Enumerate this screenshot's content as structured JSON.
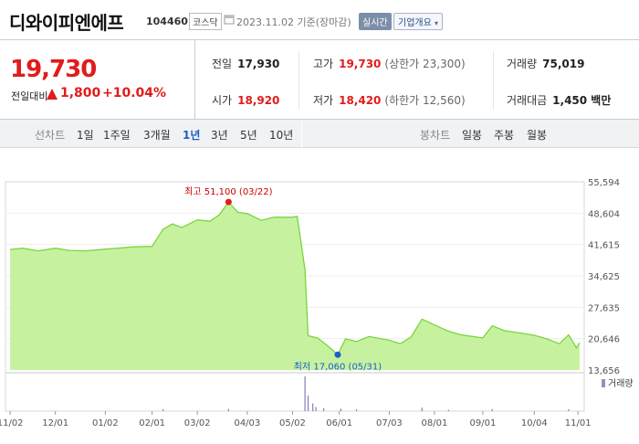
{
  "header": {
    "name": "디와이피엔에프",
    "code": "104460",
    "market": "코스닥",
    "date": "2023.11.02 기준(장마감)",
    "realtime": "실시간",
    "overview": "기업개요"
  },
  "summary": {
    "price": "19,730",
    "change_label": "전일대비",
    "change": "1,800",
    "change_pct": "+10.04%",
    "prev_label": "전일",
    "prev": "17,930",
    "high_label": "고가",
    "high": "19,730",
    "high_note": "(상한가 23,300)",
    "volume_label": "거래량",
    "volume": "75,019",
    "open_label": "시가",
    "open": "18,920",
    "low_label": "저가",
    "low": "18,420",
    "low_note": "(하한가 12,560)",
    "amount_label": "거래대금",
    "amount": "1,450 백만"
  },
  "tabs": {
    "line_title": "선차트",
    "periods": [
      "1일",
      "1주일",
      "3개월",
      "1년",
      "3년",
      "5년",
      "10년"
    ],
    "active": "1년",
    "candle_title": "봉차트",
    "candles": [
      "일봉",
      "주봉",
      "월봉"
    ]
  },
  "chart_data": {
    "type": "area",
    "title": "",
    "xlabel": "",
    "ylabel": "",
    "accent_color": "#7bd43f",
    "fill_color": "#c6f2a0",
    "ylim": [
      13656,
      55594
    ],
    "y_ticks": [
      "55,594",
      "48,604",
      "41,615",
      "34,625",
      "27,635",
      "20,646",
      "13,656"
    ],
    "x_ticks": [
      "11/02",
      "12/01",
      "01/02",
      "02/01",
      "03/02",
      "04/03",
      "05/02",
      "06/01",
      "07/03",
      "08/01",
      "09/01",
      "10/04",
      "11/01"
    ],
    "volume_label": "거래량",
    "high_annotation": "최고 51,100 (03/22)",
    "low_annotation": "최저 17,060 (05/31)",
    "series": [
      {
        "points": [
          [
            "2022-11-02",
            40500
          ],
          [
            "2022-11-10",
            40800
          ],
          [
            "2022-11-20",
            40200
          ],
          [
            "2022-12-01",
            40800
          ],
          [
            "2022-12-10",
            40300
          ],
          [
            "2022-12-20",
            40200
          ],
          [
            "2023-01-02",
            40600
          ],
          [
            "2023-01-10",
            40800
          ],
          [
            "2023-01-20",
            41100
          ],
          [
            "2023-02-01",
            41200
          ],
          [
            "2023-02-08",
            45000
          ],
          [
            "2023-02-14",
            46200
          ],
          [
            "2023-02-20",
            45400
          ],
          [
            "2023-03-02",
            47100
          ],
          [
            "2023-03-10",
            46800
          ],
          [
            "2023-03-16",
            48200
          ],
          [
            "2023-03-22",
            51100
          ],
          [
            "2023-03-28",
            48800
          ],
          [
            "2023-04-03",
            48500
          ],
          [
            "2023-04-12",
            47000
          ],
          [
            "2023-04-20",
            47700
          ],
          [
            "2023-05-02",
            47700
          ],
          [
            "2023-05-05",
            47900
          ],
          [
            "2023-05-10",
            36000
          ],
          [
            "2023-05-12",
            21300
          ],
          [
            "2023-05-18",
            20800
          ],
          [
            "2023-05-24",
            19200
          ],
          [
            "2023-05-31",
            17060
          ],
          [
            "2023-06-05",
            20600
          ],
          [
            "2023-06-12",
            20000
          ],
          [
            "2023-06-20",
            21100
          ],
          [
            "2023-07-03",
            20300
          ],
          [
            "2023-07-10",
            19500
          ],
          [
            "2023-07-17",
            21000
          ],
          [
            "2023-07-24",
            25000
          ],
          [
            "2023-08-01",
            23700
          ],
          [
            "2023-08-10",
            22300
          ],
          [
            "2023-08-18",
            21500
          ],
          [
            "2023-09-01",
            20800
          ],
          [
            "2023-09-07",
            23500
          ],
          [
            "2023-09-15",
            22400
          ],
          [
            "2023-09-25",
            21900
          ],
          [
            "2023-10-04",
            21400
          ],
          [
            "2023-10-12",
            20600
          ],
          [
            "2023-10-20",
            19500
          ],
          [
            "2023-10-26",
            21500
          ],
          [
            "2023-10-31",
            18600
          ],
          [
            "2023-11-02",
            19730
          ]
        ]
      }
    ],
    "volume_bars": [
      [
        "2023-05-10",
        1.0
      ],
      [
        "2023-05-12",
        0.45
      ],
      [
        "2023-05-15",
        0.22
      ],
      [
        "2023-05-17",
        0.12
      ],
      [
        "2023-05-22",
        0.08
      ],
      [
        "2023-06-02",
        0.07
      ],
      [
        "2023-06-12",
        0.05
      ],
      [
        "2023-07-24",
        0.1
      ],
      [
        "2023-08-10",
        0.04
      ],
      [
        "2023-09-07",
        0.06
      ],
      [
        "2023-10-26",
        0.05
      ],
      [
        "2023-02-08",
        0.05
      ],
      [
        "2023-03-22",
        0.06
      ]
    ]
  }
}
